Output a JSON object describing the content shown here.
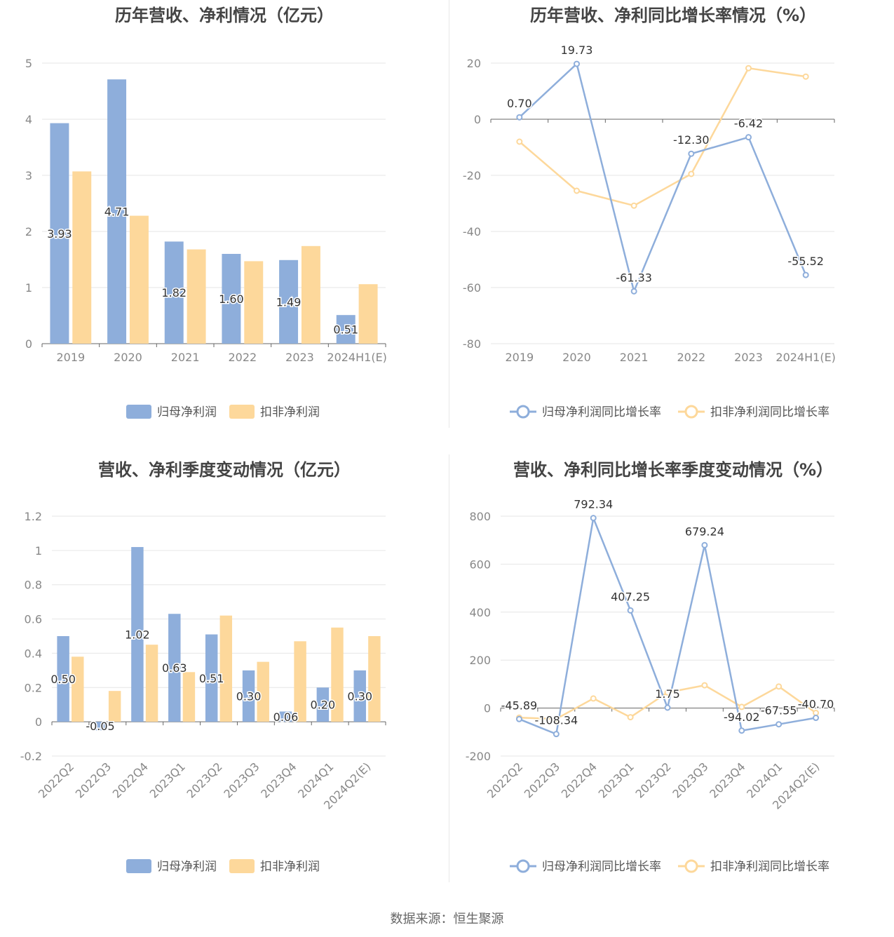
{
  "footer": "数据来源：恒生聚源",
  "colors": {
    "primary": "#8eaedb",
    "secondary": "#fdd89b",
    "grid": "#e6e6e6",
    "axis": "#666666"
  },
  "chart_data": [
    {
      "type": "bar",
      "title": "历年营收、净利情况（亿元）",
      "categories": [
        "2019",
        "2020",
        "2021",
        "2022",
        "2023",
        "2024H1(E)"
      ],
      "ylim": [
        0,
        5
      ],
      "yticks": [
        "0",
        "1",
        "2",
        "3",
        "4",
        "5"
      ],
      "series": [
        {
          "name": "归母净利润",
          "values": [
            3.93,
            4.71,
            1.82,
            1.6,
            1.49,
            0.51
          ],
          "labels": [
            "3.93",
            "4.71",
            "1.82",
            "1.60",
            "1.49",
            "0.51"
          ]
        },
        {
          "name": "扣非净利润",
          "values": [
            3.07,
            2.28,
            1.68,
            1.47,
            1.74,
            1.06
          ]
        }
      ],
      "legend": "bottom",
      "grid": true
    },
    {
      "type": "line",
      "title": "历年营收、净利同比增长率情况（%）",
      "categories": [
        "2019",
        "2020",
        "2021",
        "2022",
        "2023",
        "2024H1(E)"
      ],
      "ylim": [
        -80,
        20
      ],
      "yticks": [
        "20",
        "0",
        "-20",
        "-40",
        "-60",
        "-80"
      ],
      "series": [
        {
          "name": "归母净利润同比增长率",
          "values": [
            0.7,
            19.73,
            -61.33,
            -12.3,
            -6.42,
            -55.52
          ],
          "labels": [
            "0.70",
            "19.73",
            "-61.33",
            "-12.30",
            "-6.42",
            "-55.52"
          ]
        },
        {
          "name": "扣非净利润同比增长率",
          "values": [
            -8.0,
            -25.5,
            -30.8,
            -19.5,
            18.2,
            15.2
          ]
        }
      ],
      "legend": "bottom",
      "grid": true
    },
    {
      "type": "bar",
      "title": "营收、净利季度变动情况（亿元）",
      "categories": [
        "2022Q2",
        "2022Q3",
        "2022Q4",
        "2023Q1",
        "2023Q2",
        "2023Q3",
        "2023Q4",
        "2024Q1",
        "2024Q2(E)"
      ],
      "ylim": [
        -0.2,
        1.2
      ],
      "yticks": [
        "1.2",
        "1",
        "0.8",
        "0.6",
        "0.4",
        "0.2",
        "0",
        "-0.2"
      ],
      "series": [
        {
          "name": "归母净利润",
          "values": [
            0.5,
            -0.05,
            1.02,
            0.63,
            0.51,
            0.3,
            0.06,
            0.2,
            0.3
          ],
          "labels": [
            "0.50",
            "-0.05",
            "1.02",
            "0.63",
            "0.51",
            "0.30",
            "0.06",
            "0.20",
            "0.30"
          ]
        },
        {
          "name": "扣非净利润",
          "values": [
            0.38,
            0.18,
            0.45,
            0.29,
            0.62,
            0.35,
            0.47,
            0.55,
            0.5
          ]
        }
      ],
      "legend": "bottom",
      "grid": true
    },
    {
      "type": "line",
      "title": "营收、净利同比增长率季度变动情况（%）",
      "categories": [
        "2022Q2",
        "2022Q3",
        "2022Q4",
        "2023Q1",
        "2023Q2",
        "2023Q3",
        "2023Q4",
        "2024Q1",
        "2024Q2(E)"
      ],
      "ylim": [
        -200,
        800
      ],
      "yticks": [
        "800",
        "600",
        "400",
        "200",
        "0",
        "-200"
      ],
      "series": [
        {
          "name": "归母净利润同比增长率",
          "values": [
            -45.89,
            -108.34,
            792.34,
            407.25,
            1.75,
            679.24,
            -94.02,
            -67.55,
            -40.7
          ],
          "labels": [
            "-45.89",
            "-108.34",
            "792.34",
            "407.25",
            "1.75",
            "679.24",
            "-94.02",
            "-67.55",
            "-40.70"
          ]
        },
        {
          "name": "扣非净利润同比增长率",
          "values": [
            -40,
            -45,
            40,
            -38,
            65,
            95,
            5,
            90,
            -20
          ]
        }
      ],
      "legend": "bottom",
      "grid": true
    }
  ]
}
